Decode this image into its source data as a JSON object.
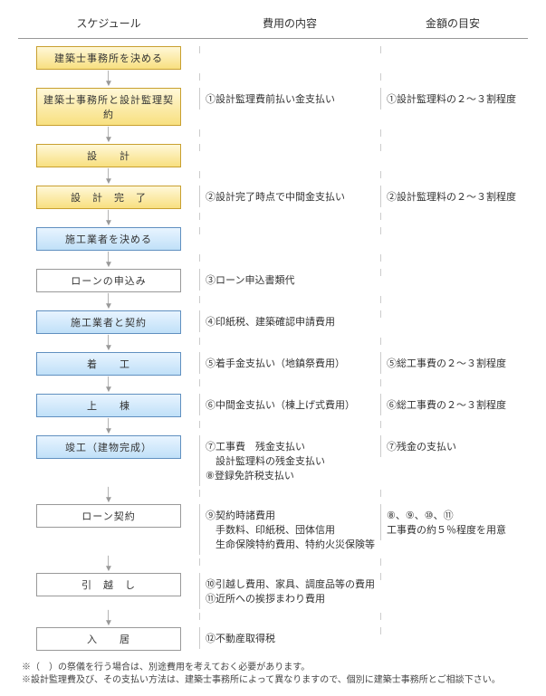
{
  "headers": {
    "left": "スケジュール",
    "mid": "費用の内容",
    "right": "金額の目安"
  },
  "rows": [
    {
      "box": "建築士事務所を決める",
      "boxColor": "yellow",
      "mid": "",
      "right": ""
    },
    {
      "box": "建築士事務所と設計監理契約",
      "boxColor": "yellow",
      "mid": "①設計監理費前払い金支払い",
      "right": "①設計監理料の２～３割程度"
    },
    {
      "box": "設　　計",
      "boxColor": "yellow",
      "mid": "",
      "right": ""
    },
    {
      "box": "設　計　完　了",
      "boxColor": "yellow",
      "mid": "②設計完了時点で中間金支払い",
      "right": "②設計監理料の２～３割程度"
    },
    {
      "box": "施工業者を決める",
      "boxColor": "blue",
      "mid": "",
      "right": ""
    },
    {
      "box": "ローンの申込み",
      "boxColor": "white",
      "mid": "③ローン申込書類代",
      "right": ""
    },
    {
      "box": "施工業者と契約",
      "boxColor": "blue",
      "mid": "④印紙税、建築確認申請費用",
      "right": ""
    },
    {
      "box": "着　　工",
      "boxColor": "blue",
      "mid": "⑤着手金支払い（地鎮祭費用）",
      "right": "⑤総工事費の２～３割程度"
    },
    {
      "box": "上　　棟",
      "boxColor": "blue",
      "mid": "⑥中間金支払い（棟上げ式費用）",
      "right": "⑥総工事費の２～３割程度"
    },
    {
      "box": "竣工（建物完成）",
      "boxColor": "blue",
      "mid": "⑦工事費　残金支払い\n　設計監理料の残金支払い\n⑧登録免許税支払い",
      "right": "⑦残金の支払い"
    },
    {
      "box": "ローン契約",
      "boxColor": "white",
      "mid": "⑨契約時諸費用\n　手数料、印紙税、団体信用\n　生命保険特約費用、特約火災保険等",
      "right": "⑧、⑨、⑩、⑪\n工事費の約５％程度を用意"
    },
    {
      "box": "引　越　し",
      "boxColor": "white",
      "mid": "⑩引越し費用、家具、調度品等の費用\n⑪近所への挨拶まわり費用",
      "right": ""
    },
    {
      "box": "入　　居",
      "boxColor": "white",
      "mid": "⑫不動産取得税",
      "right": ""
    }
  ],
  "footer": [
    "※（　）の祭儀を行う場合は、別途費用を考えておく必要があります。",
    "※設計監理費及び、その支払い方法は、建築士事務所によって異なりますので、個別に建築士事務所とご相談下さい。"
  ]
}
